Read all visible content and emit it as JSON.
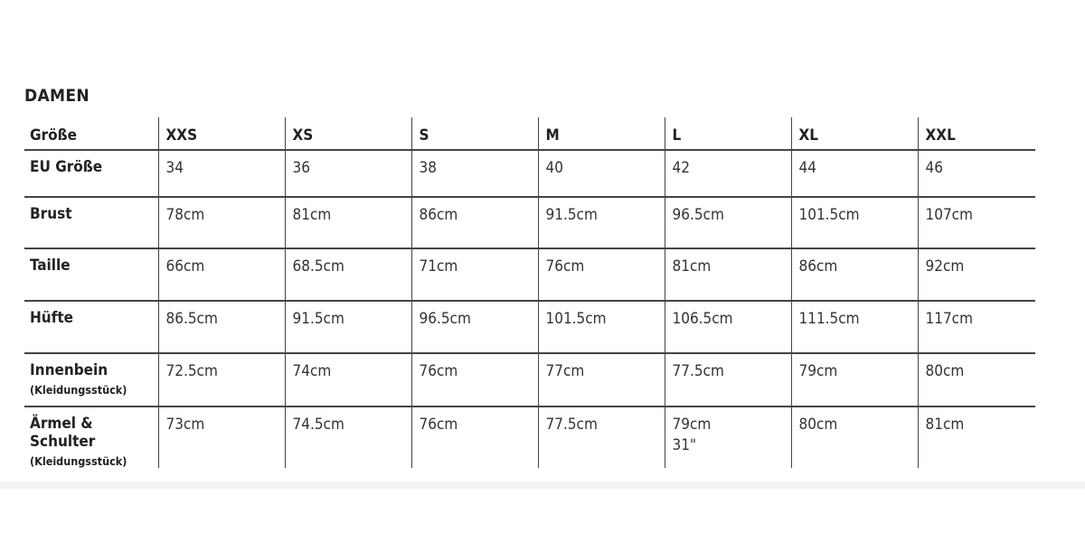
{
  "title": "DAMEN",
  "header": {
    "label": "Größe",
    "sizes": [
      "XXS",
      "XS",
      "S",
      "M",
      "L",
      "XL",
      "XXL"
    ]
  },
  "rows": [
    {
      "label": "EU Größe",
      "sub": "",
      "values": [
        "34",
        "36",
        "38",
        "40",
        "42",
        "44",
        "46"
      ]
    },
    {
      "label": "Brust",
      "sub": "",
      "values": [
        "78cm",
        "81cm",
        "86cm",
        "91.5cm",
        "96.5cm",
        "101.5cm",
        "107cm"
      ]
    },
    {
      "label": "Taille",
      "sub": "",
      "values": [
        "66cm",
        "68.5cm",
        "71cm",
        "76cm",
        "81cm",
        "86cm",
        "92cm"
      ]
    },
    {
      "label": "Hüfte",
      "sub": "",
      "values": [
        "86.5cm",
        "91.5cm",
        "96.5cm",
        "101.5cm",
        "106.5cm",
        "111.5cm",
        "117cm"
      ]
    },
    {
      "label": "Innenbein",
      "sub": "(Kleidungsstück)",
      "values": [
        "72.5cm",
        "74cm",
        "76cm",
        "77cm",
        "77.5cm",
        "79cm",
        "80cm"
      ]
    },
    {
      "label": "Ärmel & Schulter",
      "sub": "(Kleidungsstück)",
      "values": [
        "73cm",
        "74.5cm",
        "76cm",
        "77.5cm",
        "79cm\n31\"",
        "80cm",
        "81cm"
      ]
    }
  ]
}
